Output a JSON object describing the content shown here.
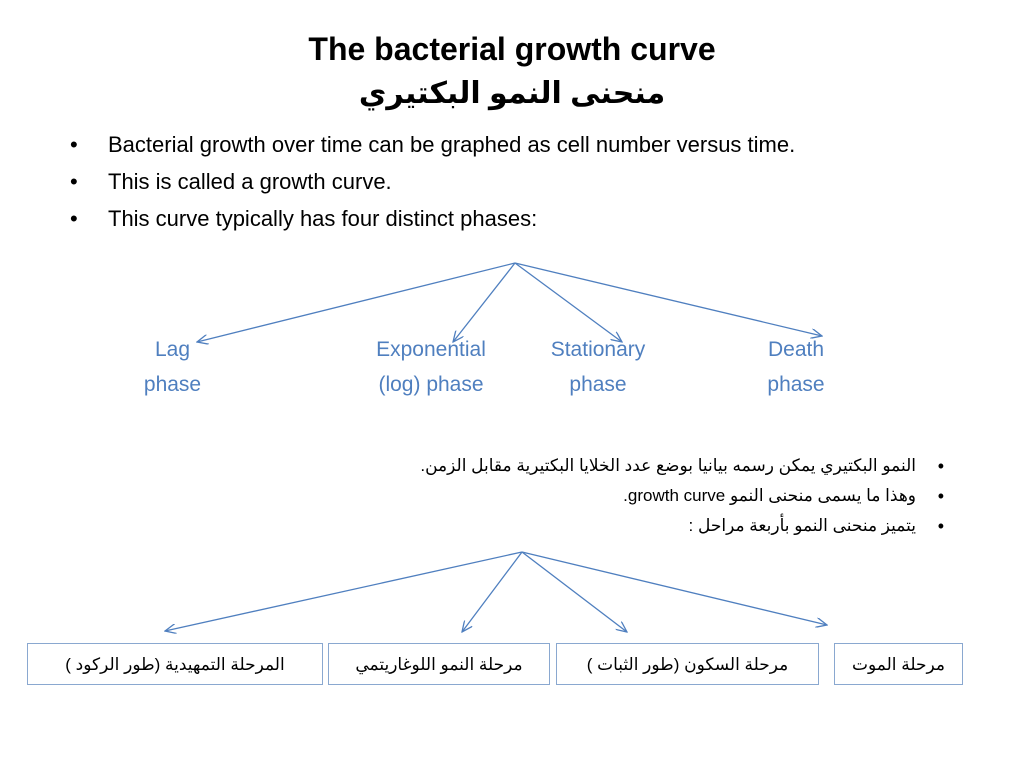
{
  "title_en": "The bacterial growth curve",
  "title_ar": "منحنى النمو البكتيري",
  "bullets_en": [
    "Bacterial growth over time can be graphed as cell number versus time.",
    "This is called a growth curve.",
    "This curve typically has four distinct phases:"
  ],
  "phases_en": [
    {
      "line1": "Lag",
      "line2": "phase"
    },
    {
      "line1": "Exponential",
      "line2": "(log) phase"
    },
    {
      "line1": "Stationary",
      "line2": "phase"
    },
    {
      "line1": "Death",
      "line2": "phase"
    }
  ],
  "bullets_ar": [
    "النمو البكتيري يمكن  رسمه بيانيا بوضع عدد الخلايا البكتيرية مقابل الزمن.",
    "وهذا ما يسمى منحنى النمو growth curve.",
    "يتميز منحنى النمو بأربعة مراحل :"
  ],
  "phases_ar": [
    "المرحلة التمهيدية (طور الركود )",
    "مرحلة النمو اللوغاريتمي",
    "مرحلة السكون (طور الثبات )",
    "مرحلة الموت"
  ],
  "colors": {
    "accent": "#4f7fbf",
    "box_border": "#8aa8d0"
  }
}
